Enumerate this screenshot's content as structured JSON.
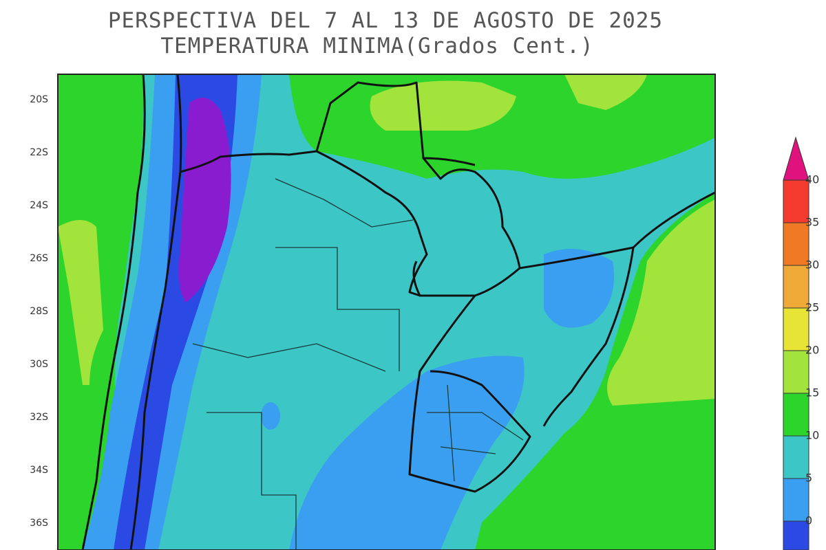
{
  "header": {
    "title": "PERSPECTIVA DEL 7 AL 13 DE AGOSTO DE 2025",
    "subtitle": "TEMPERATURA MINIMA(Grados Cent.)"
  },
  "map": {
    "latitude_labels": [
      "20S",
      "22S",
      "24S",
      "26S",
      "28S",
      "30S",
      "32S",
      "34S",
      "36S"
    ]
  },
  "legend": {
    "labels": [
      "40",
      "35",
      "30",
      "25",
      "20",
      "15",
      "10",
      "5",
      "0"
    ]
  }
}
